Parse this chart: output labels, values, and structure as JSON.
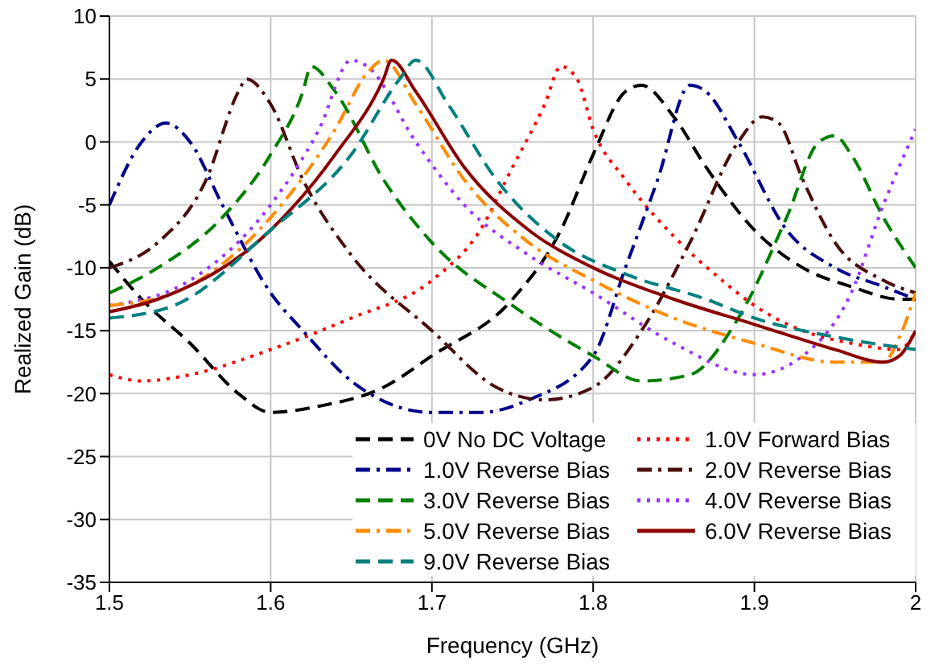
{
  "chart_data": {
    "type": "line",
    "xlabel": "Frequency (GHz)",
    "ylabel": "Realized Gain (dB)",
    "xlim": [
      1.5,
      2.0
    ],
    "xticks": [
      1.5,
      1.6,
      1.7,
      1.8,
      1.9,
      2.0
    ],
    "ylim": [
      -35,
      10
    ],
    "yticks": [
      -35,
      -30,
      -25,
      -20,
      -15,
      -10,
      -5,
      0,
      5,
      10
    ],
    "grid": true,
    "legend": "bottom right",
    "marker": "none",
    "series": [
      {
        "name": "0V No DC Voltage",
        "color": "#000000",
        "line_style": "dashed",
        "x": [
          1.5,
          1.52,
          1.55,
          1.58,
          1.6,
          1.63,
          1.67,
          1.7,
          1.75,
          1.78,
          1.8,
          1.82,
          1.83,
          1.85,
          1.87,
          1.9,
          1.93,
          1.96,
          1.99,
          2.0
        ],
        "values": [
          -9.5,
          -12.5,
          -16,
          -20,
          -21.5,
          -21,
          -19.5,
          -17,
          -12.5,
          -7,
          -1,
          4,
          4.5,
          2,
          -2,
          -7,
          -10,
          -11.5,
          -12.5,
          -12.5
        ]
      },
      {
        "name": "1.0V Forward Bias",
        "color": "#ff0000",
        "line_style": "dotted",
        "x": [
          1.5,
          1.52,
          1.55,
          1.6,
          1.65,
          1.7,
          1.73,
          1.75,
          1.77,
          1.78,
          1.79,
          1.8,
          1.82,
          1.85,
          1.88,
          1.9,
          1.93,
          1.96,
          1.99,
          2.0
        ],
        "values": [
          -18.5,
          -19,
          -18.5,
          -16.5,
          -14,
          -11,
          -7,
          -2,
          3,
          6,
          5,
          1,
          -3,
          -7.5,
          -11,
          -13,
          -15,
          -16,
          -16.5,
          -15
        ]
      },
      {
        "name": "1.0V Reverse Bias",
        "color": "#00008b",
        "line_style": "dashdot",
        "x": [
          1.5,
          1.52,
          1.535,
          1.55,
          1.57,
          1.6,
          1.62,
          1.65,
          1.7,
          1.73,
          1.76,
          1.8,
          1.82,
          1.84,
          1.86,
          1.87,
          1.89,
          1.92,
          1.95,
          1.98,
          2.0
        ],
        "values": [
          -5,
          0,
          1.5,
          0,
          -5,
          -12,
          -15,
          -19,
          -21.5,
          -21.5,
          -20.5,
          -17,
          -10,
          -3,
          4.5,
          4,
          0,
          -7,
          -10,
          -11.5,
          -12.5
        ]
      },
      {
        "name": "2.0V Reverse Bias",
        "color": "#4a0e0e",
        "line_style": "dashdot",
        "x": [
          1.5,
          1.53,
          1.56,
          1.58,
          1.585,
          1.6,
          1.62,
          1.65,
          1.7,
          1.74,
          1.77,
          1.8,
          1.83,
          1.86,
          1.89,
          1.905,
          1.915,
          1.93,
          1.95,
          1.98,
          2.0
        ],
        "values": [
          -10,
          -8,
          -3,
          4,
          5,
          3,
          -3,
          -9,
          -15,
          -19.5,
          -20.5,
          -19.5,
          -15,
          -8,
          0,
          2,
          1.5,
          -3,
          -8,
          -11,
          -12
        ]
      },
      {
        "name": "3.0V Reverse Bias",
        "color": "#008000",
        "line_style": "dashed",
        "x": [
          1.5,
          1.53,
          1.57,
          1.6,
          1.62,
          1.625,
          1.64,
          1.67,
          1.7,
          1.75,
          1.8,
          1.83,
          1.86,
          1.89,
          1.92,
          1.94,
          1.95,
          1.96,
          1.98,
          2.0
        ],
        "values": [
          -12,
          -10,
          -6,
          -1,
          4,
          6,
          4,
          -3,
          -8,
          -13,
          -17,
          -19,
          -18.5,
          -14,
          -6,
          0,
          0.5,
          -1,
          -6,
          -10
        ]
      },
      {
        "name": "4.0V Reverse Bias",
        "color": "#9933ff",
        "line_style": "dotted",
        "x": [
          1.5,
          1.55,
          1.6,
          1.63,
          1.65,
          1.66,
          1.69,
          1.72,
          1.76,
          1.8,
          1.85,
          1.9,
          1.93,
          1.96,
          1.98,
          2.0
        ],
        "values": [
          -13,
          -11,
          -5,
          1,
          6.5,
          6,
          0,
          -5,
          -9,
          -12,
          -16,
          -18.5,
          -17,
          -12,
          -5,
          1
        ]
      },
      {
        "name": "5.0V Reverse Bias",
        "color": "#ff8c00",
        "line_style": "dashdot",
        "x": [
          1.5,
          1.54,
          1.6,
          1.64,
          1.66,
          1.67,
          1.69,
          1.72,
          1.76,
          1.8,
          1.85,
          1.9,
          1.95,
          1.98,
          1.99,
          2.0
        ],
        "values": [
          -13,
          -12,
          -6,
          1,
          5.5,
          6.5,
          3,
          -3,
          -8,
          -11,
          -14,
          -16,
          -17.5,
          -17.5,
          -15.5,
          -12
        ]
      },
      {
        "name": "6.0V Reverse Bias",
        "color": "#8b0000",
        "line_style": "solid",
        "x": [
          1.5,
          1.53,
          1.6,
          1.64,
          1.67,
          1.675,
          1.69,
          1.72,
          1.76,
          1.8,
          1.85,
          1.9,
          1.95,
          1.98,
          1.99,
          2.0
        ],
        "values": [
          -13.5,
          -12.5,
          -7,
          -1,
          5,
          6.5,
          4,
          -2,
          -7,
          -10,
          -12.5,
          -14.5,
          -16.5,
          -17.5,
          -17,
          -15
        ]
      },
      {
        "name": "9.0V Reverse Bias",
        "color": "#008080",
        "line_style": "dashed",
        "x": [
          1.5,
          1.54,
          1.6,
          1.65,
          1.68,
          1.69,
          1.71,
          1.74,
          1.78,
          1.82,
          1.87,
          1.9,
          1.95,
          2.0
        ],
        "values": [
          -14,
          -13,
          -7,
          -1,
          5,
          6.5,
          3,
          -3,
          -8,
          -10.5,
          -12.5,
          -14,
          -15.5,
          -16.5
        ]
      }
    ]
  }
}
